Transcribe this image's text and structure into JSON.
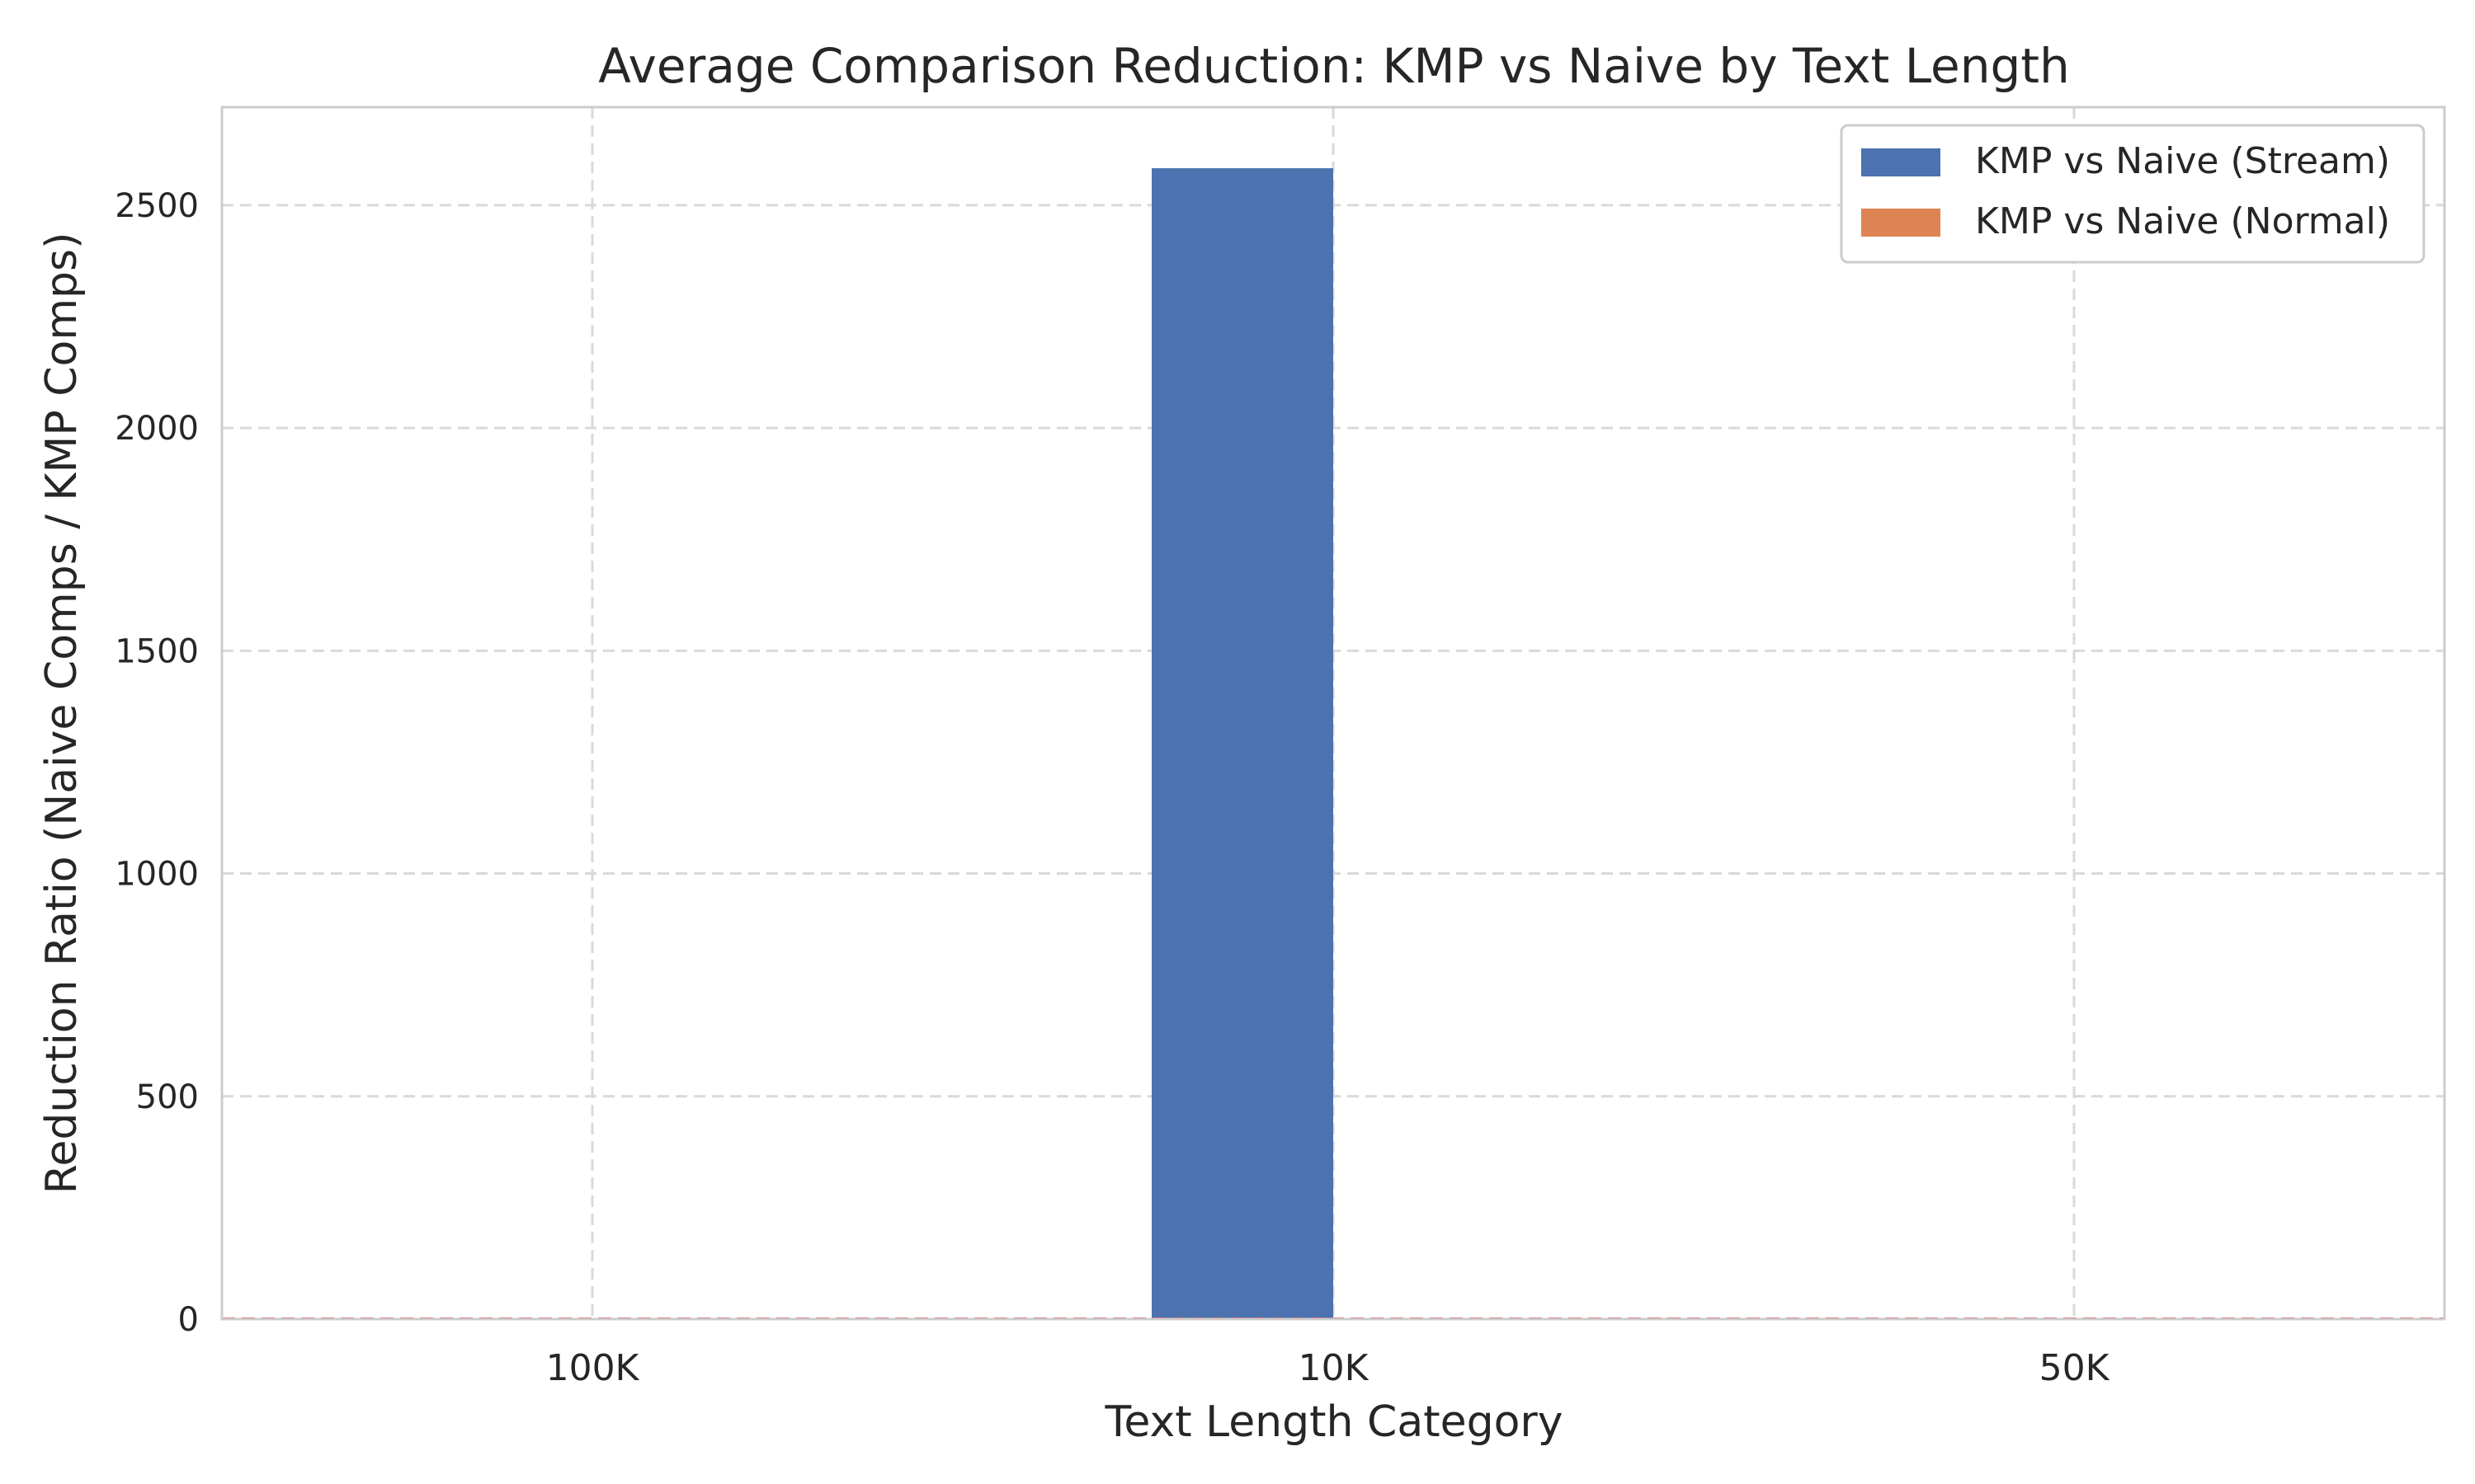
{
  "chart_data": {
    "type": "bar",
    "title": "Average Comparison Reduction: KMP vs Naive by Text Length",
    "xlabel": "Text Length Category",
    "ylabel": "Reduction Ratio (Naive Comps / KMP Comps)",
    "categories": [
      "100K",
      "10K",
      "50K"
    ],
    "series": [
      {
        "name": "KMP vs Naive (Stream)",
        "values": [
          0,
          2583,
          0
        ],
        "color": "#4c72b0"
      },
      {
        "name": "KMP vs Naive (Normal)",
        "values": [
          0,
          0,
          0
        ],
        "color": "#dd8452"
      }
    ],
    "ylim": [
      0,
      2720
    ],
    "yticks": [
      0,
      500,
      1000,
      1500,
      2000,
      2500
    ],
    "reference_line": {
      "value": 1,
      "color": "#e8474b",
      "style": "dashed"
    },
    "grid": true,
    "legend_position": "top-right"
  }
}
